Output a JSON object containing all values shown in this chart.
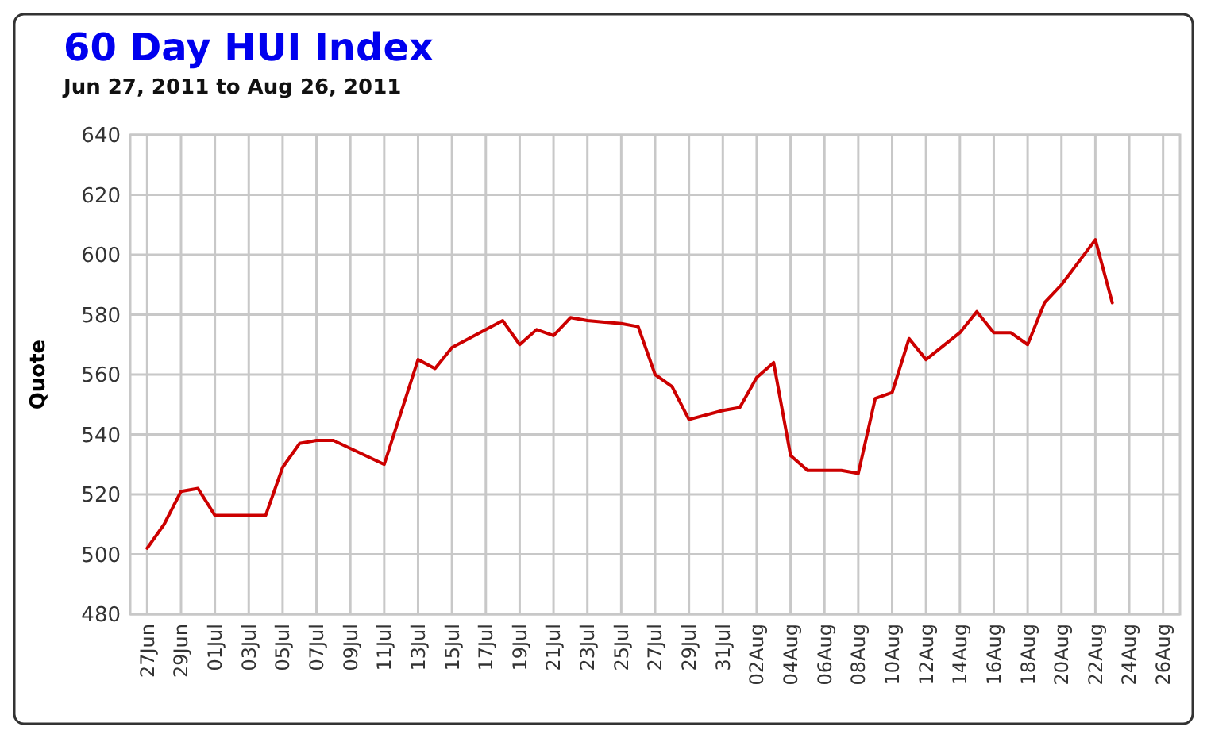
{
  "chart_data": {
    "type": "line",
    "title": "60 Day HUI Index",
    "subtitle": "Jun 27, 2011 to Aug 26, 2011",
    "ylabel": "Quote",
    "x": [
      "2011-06-27",
      "2011-06-28",
      "2011-06-29",
      "2011-06-30",
      "2011-07-01",
      "2011-07-04",
      "2011-07-05",
      "2011-07-06",
      "2011-07-07",
      "2011-07-08",
      "2011-07-11",
      "2011-07-13",
      "2011-07-14",
      "2011-07-15",
      "2011-07-18",
      "2011-07-19",
      "2011-07-20",
      "2011-07-21",
      "2011-07-22",
      "2011-07-23",
      "2011-07-25",
      "2011-07-26",
      "2011-07-27",
      "2011-07-28",
      "2011-07-29",
      "2011-07-31",
      "2011-08-01",
      "2011-08-02",
      "2011-08-03",
      "2011-08-04",
      "2011-08-05",
      "2011-08-07",
      "2011-08-08",
      "2011-08-09",
      "2011-08-10",
      "2011-08-11",
      "2011-08-12",
      "2011-08-14",
      "2011-08-15",
      "2011-08-16",
      "2011-08-17",
      "2011-08-18",
      "2011-08-19",
      "2011-08-20",
      "2011-08-22",
      "2011-08-23"
    ],
    "series": [
      {
        "color": "#cc0000",
        "values": [
          502,
          510,
          521,
          522,
          513,
          513,
          529,
          537,
          538,
          538,
          530,
          565,
          562,
          569,
          578,
          570,
          575,
          573,
          579,
          578,
          577,
          576,
          560,
          556,
          545,
          548,
          549,
          559,
          564,
          533,
          528,
          528,
          527,
          552,
          554,
          572,
          565,
          574,
          581,
          574,
          574,
          570,
          584,
          590,
          605,
          584
        ]
      }
    ],
    "xlim": [
      "2011-06-26",
      "2011-08-27"
    ],
    "xticks": [
      {
        "value": "2011-06-27",
        "label": "27Jun"
      },
      {
        "value": "2011-06-29",
        "label": "29Jun"
      },
      {
        "value": "2011-07-01",
        "label": "01Jul"
      },
      {
        "value": "2011-07-03",
        "label": "03Jul"
      },
      {
        "value": "2011-07-05",
        "label": "05Jul"
      },
      {
        "value": "2011-07-07",
        "label": "07Jul"
      },
      {
        "value": "2011-07-09",
        "label": "09Jul"
      },
      {
        "value": "2011-07-11",
        "label": "11Jul"
      },
      {
        "value": "2011-07-13",
        "label": "13Jul"
      },
      {
        "value": "2011-07-15",
        "label": "15Jul"
      },
      {
        "value": "2011-07-17",
        "label": "17Jul"
      },
      {
        "value": "2011-07-19",
        "label": "19Jul"
      },
      {
        "value": "2011-07-21",
        "label": "21Jul"
      },
      {
        "value": "2011-07-23",
        "label": "23Jul"
      },
      {
        "value": "2011-07-25",
        "label": "25Jul"
      },
      {
        "value": "2011-07-27",
        "label": "27Jul"
      },
      {
        "value": "2011-07-29",
        "label": "29Jul"
      },
      {
        "value": "2011-07-31",
        "label": "31Jul"
      },
      {
        "value": "2011-08-02",
        "label": "02Aug"
      },
      {
        "value": "2011-08-04",
        "label": "04Aug"
      },
      {
        "value": "2011-08-06",
        "label": "06Aug"
      },
      {
        "value": "2011-08-08",
        "label": "08Aug"
      },
      {
        "value": "2011-08-10",
        "label": "10Aug"
      },
      {
        "value": "2011-08-12",
        "label": "12Aug"
      },
      {
        "value": "2011-08-14",
        "label": "14Aug"
      },
      {
        "value": "2011-08-16",
        "label": "16Aug"
      },
      {
        "value": "2011-08-18",
        "label": "18Aug"
      },
      {
        "value": "2011-08-20",
        "label": "20Aug"
      },
      {
        "value": "2011-08-22",
        "label": "22Aug"
      },
      {
        "value": "2011-08-24",
        "label": "24Aug"
      },
      {
        "value": "2011-08-26",
        "label": "26Aug"
      }
    ],
    "ylim": [
      480,
      640
    ],
    "yticks": [
      480,
      500,
      520,
      540,
      560,
      580,
      600,
      620,
      640
    ],
    "grid": true,
    "line_style": "solid"
  }
}
